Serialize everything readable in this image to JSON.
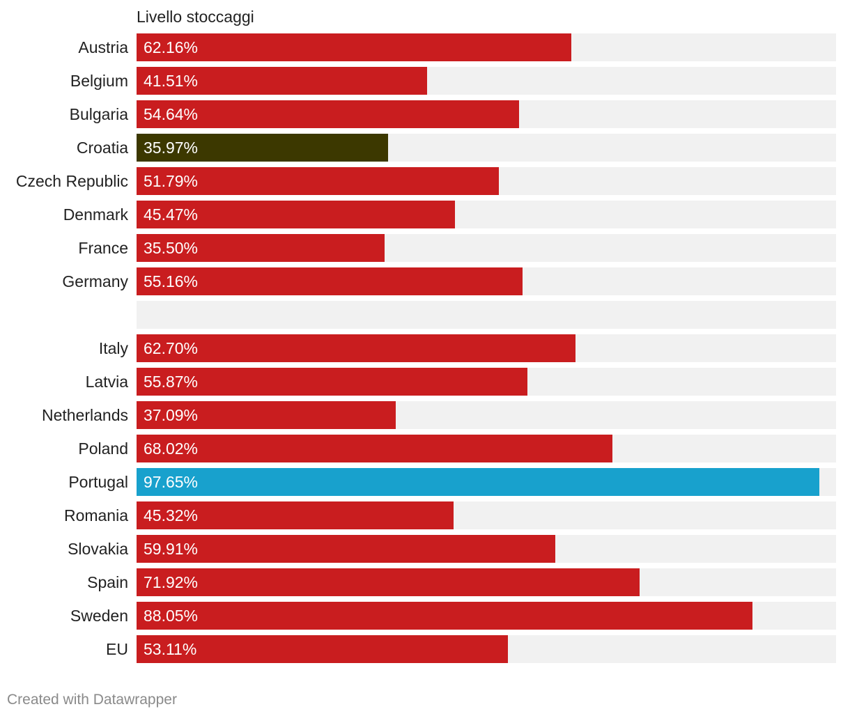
{
  "chart_data": {
    "type": "bar",
    "orientation": "horizontal",
    "column_header": "Livello stoccaggi",
    "xlim": [
      0,
      100
    ],
    "unit": "%",
    "grid": false,
    "legend": "none",
    "colors": {
      "default": "#c91d1f",
      "highlight_dark": "#3c3800",
      "highlight_blue": "#18a1cd",
      "track": "#f1f1f1"
    },
    "rows": [
      {
        "label": "Austria",
        "value": 62.16,
        "display": "62.16%",
        "color": "#c91d1f"
      },
      {
        "label": "Belgium",
        "value": 41.51,
        "display": "41.51%",
        "color": "#c91d1f"
      },
      {
        "label": "Bulgaria",
        "value": 54.64,
        "display": "54.64%",
        "color": "#c91d1f"
      },
      {
        "label": "Croatia",
        "value": 35.97,
        "display": "35.97%",
        "color": "#3c3800"
      },
      {
        "label": "Czech Republic",
        "value": 51.79,
        "display": "51.79%",
        "color": "#c91d1f"
      },
      {
        "label": "Denmark",
        "value": 45.47,
        "display": "45.47%",
        "color": "#c91d1f"
      },
      {
        "label": "France",
        "value": 35.5,
        "display": "35.50%",
        "color": "#c91d1f"
      },
      {
        "label": "Germany",
        "value": 55.16,
        "display": "55.16%",
        "color": "#c91d1f"
      },
      {
        "label": "",
        "value": null,
        "display": "",
        "color": "#c91d1f"
      },
      {
        "label": "Italy",
        "value": 62.7,
        "display": "62.70%",
        "color": "#c91d1f"
      },
      {
        "label": "Latvia",
        "value": 55.87,
        "display": "55.87%",
        "color": "#c91d1f"
      },
      {
        "label": "Netherlands",
        "value": 37.09,
        "display": "37.09%",
        "color": "#c91d1f"
      },
      {
        "label": "Poland",
        "value": 68.02,
        "display": "68.02%",
        "color": "#c91d1f"
      },
      {
        "label": "Portugal",
        "value": 97.65,
        "display": "97.65%",
        "color": "#18a1cd"
      },
      {
        "label": "Romania",
        "value": 45.32,
        "display": "45.32%",
        "color": "#c91d1f"
      },
      {
        "label": "Slovakia",
        "value": 59.91,
        "display": "59.91%",
        "color": "#c91d1f"
      },
      {
        "label": "Spain",
        "value": 71.92,
        "display": "71.92%",
        "color": "#c91d1f"
      },
      {
        "label": "Sweden",
        "value": 88.05,
        "display": "88.05%",
        "color": "#c91d1f"
      },
      {
        "label": "EU",
        "value": 53.11,
        "display": "53.11%",
        "color": "#c91d1f"
      }
    ]
  },
  "footer": {
    "credit": "Created with Datawrapper"
  }
}
